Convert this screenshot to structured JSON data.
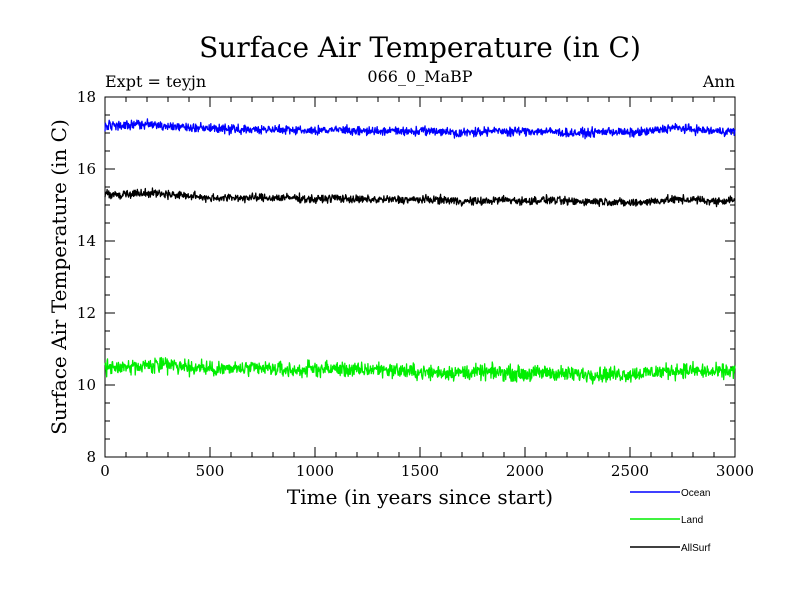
{
  "chart_data": {
    "type": "line",
    "title": "Surface Air Temperature (in C)",
    "subtitle_left": "Expt = teyjn",
    "subtitle_center": "066_0_MaBP",
    "subtitle_right": "Ann",
    "xlabel": "Time (in years since start)",
    "ylabel": "Surface Air Temperature (in C)",
    "xlim": [
      0,
      3000
    ],
    "ylim": [
      8,
      18
    ],
    "xticks": [
      0,
      500,
      1000,
      1500,
      2000,
      2500,
      3000
    ],
    "yticks": [
      8,
      10,
      12,
      14,
      16,
      18
    ],
    "grid": false,
    "legend_position": "bottom-right",
    "series": [
      {
        "name": "Ocean",
        "color": "#0000ff",
        "x": [
          0,
          100,
          200,
          300,
          400,
          500,
          600,
          700,
          800,
          900,
          1000,
          1100,
          1200,
          1300,
          1400,
          1500,
          1600,
          1700,
          1800,
          1900,
          2000,
          2100,
          2200,
          2300,
          2400,
          2500,
          2600,
          2700,
          2800,
          2900,
          3000
        ],
        "values": [
          17.2,
          17.2,
          17.25,
          17.2,
          17.15,
          17.15,
          17.1,
          17.1,
          17.1,
          17.1,
          17.05,
          17.1,
          17.05,
          17.05,
          17.05,
          17.05,
          17.05,
          17.0,
          17.05,
          17.05,
          17.05,
          17.05,
          17.0,
          17.0,
          17.05,
          17.0,
          17.05,
          17.15,
          17.1,
          17.05,
          17.05
        ]
      },
      {
        "name": "Land",
        "color": "#00ee00",
        "x": [
          0,
          100,
          200,
          300,
          400,
          500,
          600,
          700,
          800,
          900,
          1000,
          1100,
          1200,
          1300,
          1400,
          1500,
          1600,
          1700,
          1800,
          1900,
          2000,
          2100,
          2200,
          2300,
          2400,
          2500,
          2600,
          2700,
          2800,
          2900,
          3000
        ],
        "values": [
          10.5,
          10.5,
          10.55,
          10.55,
          10.5,
          10.45,
          10.45,
          10.45,
          10.45,
          10.4,
          10.45,
          10.45,
          10.4,
          10.45,
          10.4,
          10.35,
          10.35,
          10.35,
          10.35,
          10.35,
          10.3,
          10.35,
          10.3,
          10.3,
          10.3,
          10.3,
          10.35,
          10.4,
          10.4,
          10.35,
          10.4
        ]
      },
      {
        "name": "AllSurf",
        "color": "#000000",
        "x": [
          0,
          100,
          200,
          300,
          400,
          500,
          600,
          700,
          800,
          900,
          1000,
          1100,
          1200,
          1300,
          1400,
          1500,
          1600,
          1700,
          1800,
          1900,
          2000,
          2100,
          2200,
          2300,
          2400,
          2500,
          2600,
          2700,
          2800,
          2900,
          3000
        ],
        "values": [
          15.3,
          15.3,
          15.35,
          15.3,
          15.25,
          15.2,
          15.2,
          15.2,
          15.2,
          15.2,
          15.15,
          15.2,
          15.15,
          15.15,
          15.15,
          15.15,
          15.15,
          15.1,
          15.1,
          15.15,
          15.1,
          15.15,
          15.1,
          15.1,
          15.1,
          15.05,
          15.1,
          15.15,
          15.15,
          15.1,
          15.15
        ]
      }
    ]
  }
}
